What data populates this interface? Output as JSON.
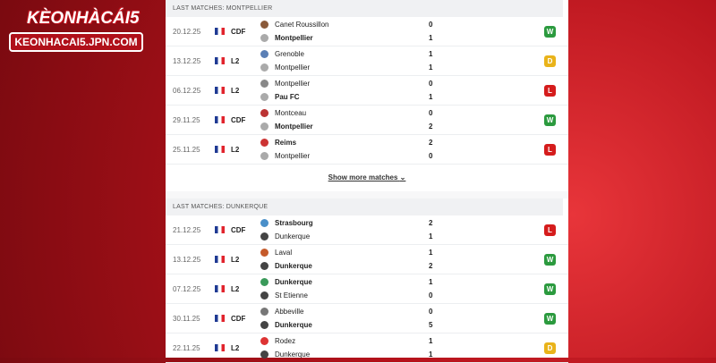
{
  "logo": {
    "brand": "KÈONHÀCÁI5",
    "url": "KEONHACAI5.JPN.COM"
  },
  "colors": {
    "win": "#2b9a3e",
    "draw": "#e9b31a",
    "loss": "#d51c1c"
  },
  "sections": [
    {
      "title": "LAST MATCHES: MONTPELLIER",
      "matches": [
        {
          "date": "20.12.25",
          "comp": "CDF",
          "home": "Canet Roussillon",
          "away": "Montpellier",
          "hs": "0",
          "as": "1",
          "bold": "away",
          "result": "W"
        },
        {
          "date": "13.12.25",
          "comp": "L2",
          "home": "Grenoble",
          "away": "Montpellier",
          "hs": "1",
          "as": "1",
          "bold": "",
          "result": "D"
        },
        {
          "date": "06.12.25",
          "comp": "L2",
          "home": "Montpellier",
          "away": "Pau FC",
          "hs": "0",
          "as": "1",
          "bold": "away",
          "result": "L"
        },
        {
          "date": "29.11.25",
          "comp": "CDF",
          "home": "Montceau",
          "away": "Montpellier",
          "hs": "0",
          "as": "2",
          "bold": "away",
          "result": "W"
        },
        {
          "date": "25.11.25",
          "comp": "L2",
          "home": "Reims",
          "away": "Montpellier",
          "hs": "2",
          "as": "0",
          "bold": "home",
          "result": "L"
        }
      ],
      "more": "Show more matches"
    },
    {
      "title": "LAST MATCHES: DUNKERQUE",
      "matches": [
        {
          "date": "21.12.25",
          "comp": "CDF",
          "home": "Strasbourg",
          "away": "Dunkerque",
          "hs": "2",
          "as": "1",
          "bold": "home",
          "result": "L"
        },
        {
          "date": "13.12.25",
          "comp": "L2",
          "home": "Laval",
          "away": "Dunkerque",
          "hs": "1",
          "as": "2",
          "bold": "away",
          "result": "W"
        },
        {
          "date": "07.12.25",
          "comp": "L2",
          "home": "Dunkerque",
          "away": "St Etienne",
          "hs": "1",
          "as": "0",
          "bold": "home",
          "result": "W"
        },
        {
          "date": "30.11.25",
          "comp": "CDF",
          "home": "Abbeville",
          "away": "Dunkerque",
          "hs": "0",
          "as": "5",
          "bold": "away",
          "result": "W"
        },
        {
          "date": "22.11.25",
          "comp": "L2",
          "home": "Rodez",
          "away": "Dunkerque",
          "hs": "1",
          "as": "1",
          "bold": "",
          "result": "D"
        }
      ]
    }
  ]
}
